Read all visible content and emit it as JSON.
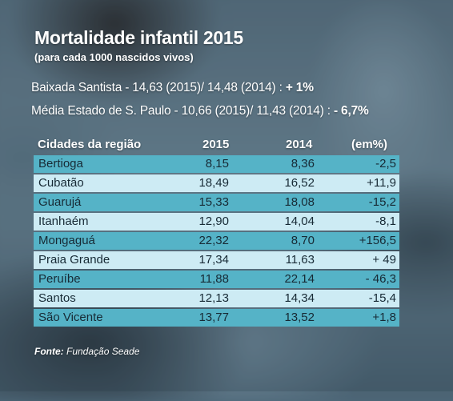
{
  "chart_data": {
    "type": "table",
    "title": "Mortalidade infantil 2015",
    "subtitle": "(para cada 1000 nascidos vivos)",
    "summary": [
      {
        "label": "Baixada Santista - 14,63 (2015)/ 14,48 (2014) : ",
        "change": "+ 1%"
      },
      {
        "label": "Média Estado de S. Paulo - 10,66 (2015)/ 11,43 (2014) : ",
        "change": "- 6,7%"
      }
    ],
    "columns": [
      "Cidades da região",
      "2015",
      "2014",
      "(em%)"
    ],
    "rows": [
      {
        "city": "Bertioga",
        "v2015": "8,15",
        "v2014": "8,36",
        "pct": "-2,5"
      },
      {
        "city": "Cubatão",
        "v2015": "18,49",
        "v2014": "16,52",
        "pct": "+11,9"
      },
      {
        "city": "Guarujá",
        "v2015": "15,33",
        "v2014": "18,08",
        "pct": "-15,2"
      },
      {
        "city": "Itanhaém",
        "v2015": "12,90",
        "v2014": "14,04",
        "pct": "-8,1"
      },
      {
        "city": "Mongaguá",
        "v2015": "22,32",
        "v2014": "8,70",
        "pct": "+156,5"
      },
      {
        "city": "Praia Grande",
        "v2015": "17,34",
        "v2014": "11,63",
        "pct": "+ 49"
      },
      {
        "city": "Peruíbe",
        "v2015": "11,88",
        "v2014": "22,14",
        "pct": "- 46,3"
      },
      {
        "city": "Santos",
        "v2015": "12,13",
        "v2014": "14,34",
        "pct": "-15,4"
      },
      {
        "city": "São Vicente",
        "v2015": "13,77",
        "v2014": "13,52",
        "pct": "+1,8"
      }
    ],
    "source_label": "Fonte:",
    "source_name": "Fundação Seade"
  },
  "colors": {
    "row_dark": "#55b3c7",
    "row_light": "#cdebf4",
    "text_dark": "#172a35",
    "text_light": "#ffffff"
  }
}
